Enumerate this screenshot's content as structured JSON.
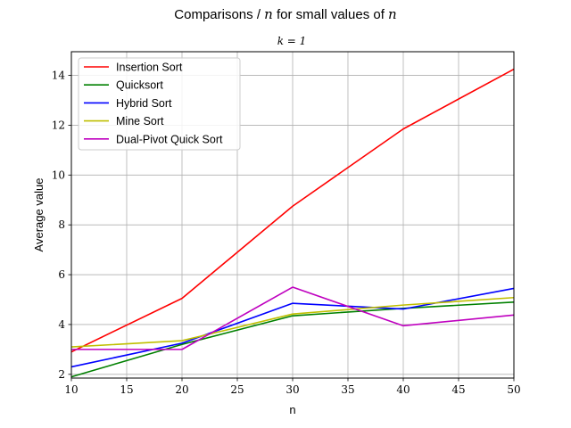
{
  "chart_data": {
    "type": "line",
    "title_prefix": "Comparisons / ",
    "title_var1": "n",
    "title_middle": " for small values of ",
    "title_var2": "n",
    "subtitle": "k = 1",
    "xlabel": "n",
    "ylabel": "Average value",
    "xlim": [
      10,
      50
    ],
    "ylim": [
      1.85,
      14.95
    ],
    "xticks": [
      10,
      15,
      20,
      25,
      30,
      35,
      40,
      45,
      50
    ],
    "yticks": [
      2,
      4,
      6,
      8,
      10,
      12,
      14
    ],
    "grid": true,
    "legend_position": "top-left",
    "x": [
      10,
      20,
      30,
      40,
      50
    ],
    "series": [
      {
        "name": "Insertion Sort",
        "color": "#ff0000",
        "values": [
          2.9,
          5.05,
          8.75,
          11.85,
          14.25
        ]
      },
      {
        "name": "Quicksort",
        "color": "#008000",
        "values": [
          1.9,
          3.2,
          4.35,
          4.65,
          4.9
        ]
      },
      {
        "name": "Hybrid Sort",
        "color": "#0000ff",
        "values": [
          2.3,
          3.25,
          4.85,
          4.62,
          5.45
        ]
      },
      {
        "name": "Mine Sort",
        "color": "#bfbf00",
        "values": [
          3.1,
          3.35,
          4.42,
          4.78,
          5.08
        ]
      },
      {
        "name": "Dual-Pivot Quick Sort",
        "color": "#bf00bf",
        "values": [
          3.0,
          3.0,
          5.5,
          3.95,
          4.38
        ]
      }
    ]
  }
}
